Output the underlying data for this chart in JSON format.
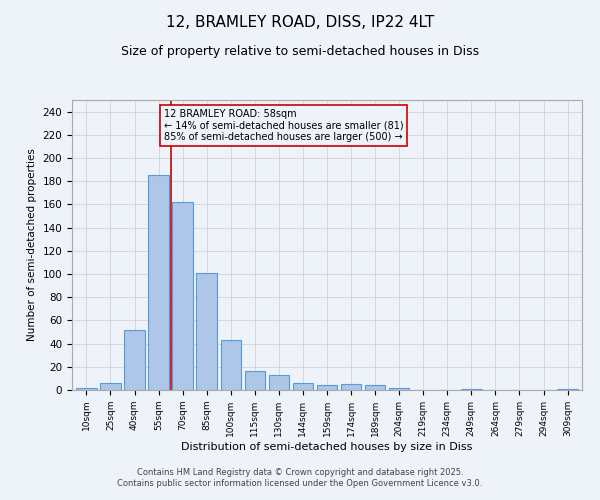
{
  "title1": "12, BRAMLEY ROAD, DISS, IP22 4LT",
  "title2": "Size of property relative to semi-detached houses in Diss",
  "xlabel": "Distribution of semi-detached houses by size in Diss",
  "ylabel": "Number of semi-detached properties",
  "categories": [
    "10sqm",
    "25sqm",
    "40sqm",
    "55sqm",
    "70sqm",
    "85sqm",
    "100sqm",
    "115sqm",
    "130sqm",
    "144sqm",
    "159sqm",
    "174sqm",
    "189sqm",
    "204sqm",
    "219sqm",
    "234sqm",
    "249sqm",
    "264sqm",
    "279sqm",
    "294sqm",
    "309sqm"
  ],
  "values": [
    2,
    6,
    52,
    185,
    162,
    101,
    43,
    16,
    13,
    6,
    4,
    5,
    4,
    2,
    0,
    0,
    1,
    0,
    0,
    0,
    1
  ],
  "bar_color": "#aec6e8",
  "bar_edge_color": "#5b9bd5",
  "grid_color": "#cccccc",
  "background_color": "#eef2f9",
  "red_line_x": 3.5,
  "annotation_title": "12 BRAMLEY ROAD: 58sqm",
  "annotation_line1": "← 14% of semi-detached houses are smaller (81)",
  "annotation_line2": "85% of semi-detached houses are larger (500) →",
  "annotation_box_color": "#cc0000",
  "ylim": [
    0,
    250
  ],
  "yticks": [
    0,
    20,
    40,
    60,
    80,
    100,
    120,
    140,
    160,
    180,
    200,
    220,
    240
  ],
  "footnote1": "Contains HM Land Registry data © Crown copyright and database right 2025.",
  "footnote2": "Contains public sector information licensed under the Open Government Licence v3.0."
}
